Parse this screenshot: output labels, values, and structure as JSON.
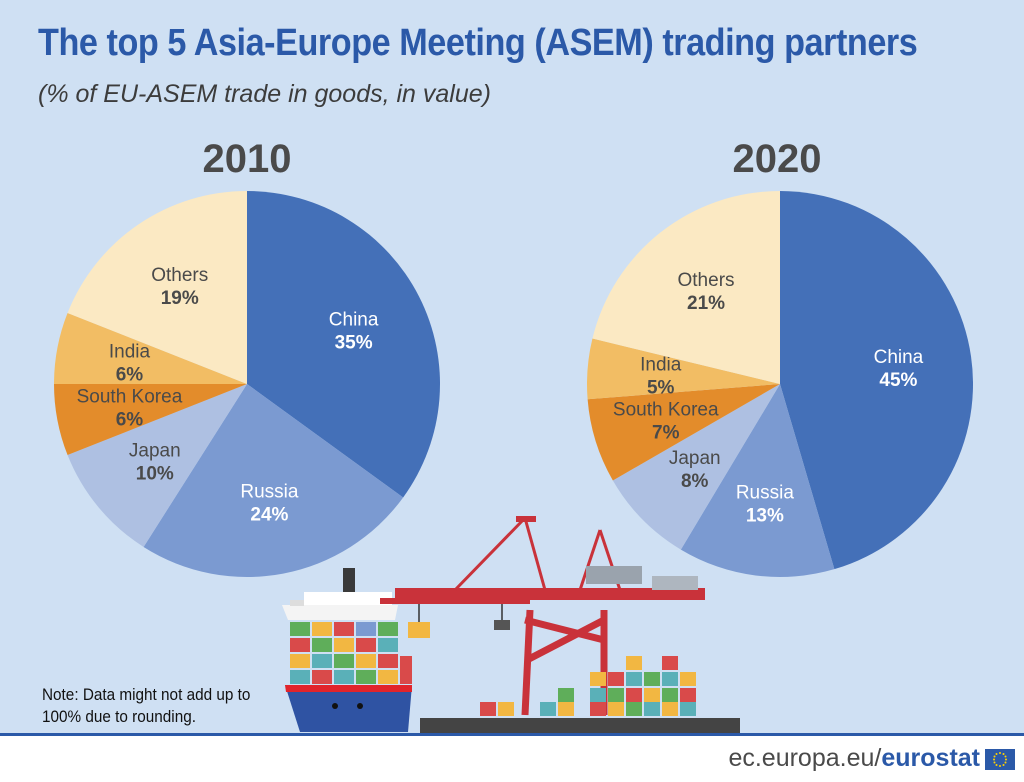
{
  "header": {
    "title": "The top 5 Asia-Europe Meeting (ASEM) trading partners",
    "subtitle": "(% of EU-ASEM trade in goods, in value)"
  },
  "note": "Note: Data might not add up to 100% due to rounding.",
  "footer": {
    "url_prefix": "ec.europa.eu/",
    "url_brand": "eurostat"
  },
  "colors": {
    "China": "#4470b8",
    "Russia": "#7b9ad1",
    "Japan": "#aec0e2",
    "South Korea": "#e38c2b",
    "India": "#f2bd64",
    "Others": "#fbe9c3",
    "background": "#cfe0f3",
    "title": "#2b59a8"
  },
  "chart_data": [
    {
      "type": "pie",
      "title": "2010",
      "categories": [
        "China",
        "Russia",
        "Japan",
        "South Korea",
        "India",
        "Others"
      ],
      "values": [
        35,
        24,
        10,
        6,
        6,
        19
      ],
      "labels": [
        "35%",
        "24%",
        "10%",
        "6%",
        "6%",
        "19%"
      ]
    },
    {
      "type": "pie",
      "title": "2020",
      "categories": [
        "China",
        "Russia",
        "Japan",
        "South Korea",
        "India",
        "Others"
      ],
      "values": [
        45,
        13,
        8,
        7,
        5,
        21
      ],
      "labels": [
        "45%",
        "13%",
        "8%",
        "7%",
        "5%",
        "21%"
      ]
    }
  ]
}
